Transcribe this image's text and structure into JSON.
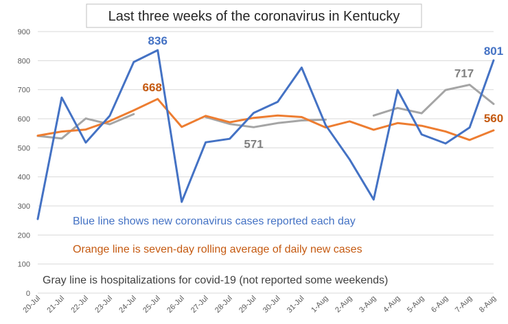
{
  "chart_data": {
    "type": "line",
    "title": "Last three weeks of the coronavirus in Kentucky",
    "xlabel": "",
    "ylabel": "",
    "ylim": [
      0,
      900
    ],
    "yticks": [
      0,
      100,
      200,
      300,
      400,
      500,
      600,
      700,
      800,
      900
    ],
    "grid": true,
    "categories": [
      "20-Jul",
      "21-Jul",
      "22-Jul",
      "23-Jul",
      "24-Jul",
      "25-Jul",
      "26-Jul",
      "27-Jul",
      "28-Jul",
      "29-Jul",
      "30-Jul",
      "31-Jul",
      "1-Aug",
      "2-Aug",
      "3-Aug",
      "4-Aug",
      "5-Aug",
      "6-Aug",
      "7-Aug",
      "8-Aug"
    ],
    "series": [
      {
        "name": "New cases",
        "color": "#4472c4",
        "values": [
          255,
          673,
          518,
          610,
          795,
          836,
          314,
          519,
          531,
          620,
          658,
          776,
          578,
          460,
          322,
          699,
          546,
          515,
          570,
          801
        ]
      },
      {
        "name": "Seven-day rolling average",
        "color": "#ed7d31",
        "values": [
          542,
          556,
          563,
          592,
          629,
          668,
          572,
          610,
          588,
          603,
          611,
          606,
          570,
          591,
          562,
          585,
          576,
          556,
          527,
          560
        ]
      },
      {
        "name": "Hospitalizations",
        "color": "#a5a5a5",
        "values": [
          541,
          532,
          601,
          581,
          616,
          null,
          null,
          606,
          582,
          571,
          585,
          594,
          597,
          null,
          611,
          637,
          619,
          699,
          717,
          651
        ]
      }
    ],
    "data_labels": [
      {
        "series": 0,
        "index": 5,
        "text": "836"
      },
      {
        "series": 0,
        "index": 19,
        "text": "801"
      },
      {
        "series": 1,
        "index": 5,
        "text": "668"
      },
      {
        "series": 1,
        "index": 19,
        "text": "560"
      },
      {
        "series": 2,
        "index": 9,
        "text": "571"
      },
      {
        "series": 2,
        "index": 18,
        "text": "717"
      }
    ],
    "annotations": [
      {
        "text": "Blue line shows new coronavirus cases reported each day",
        "color": "#4472c4"
      },
      {
        "text": "Orange line is seven-day rolling average of daily new cases",
        "color": "#c55a11"
      },
      {
        "text": "Gray line is hospitalizations for covid-19 (not reported some weekends)",
        "color": "#404040"
      }
    ]
  }
}
